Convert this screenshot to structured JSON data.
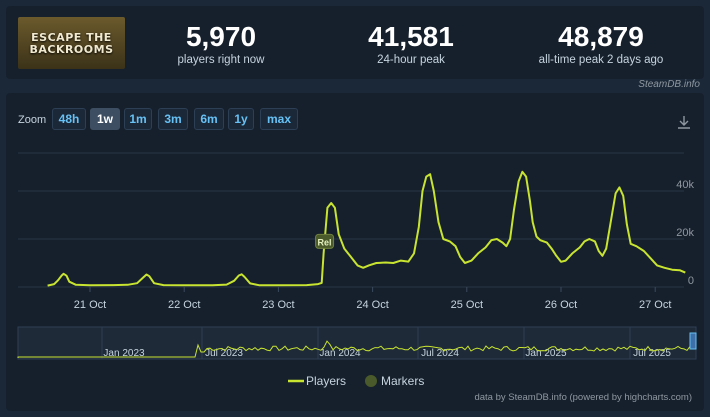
{
  "game": {
    "logo_text": "ESCAPE THE\nBACKROOMS"
  },
  "stats": [
    {
      "value": "5,970",
      "label": "players right now"
    },
    {
      "value": "41,581",
      "label": "24-hour peak"
    },
    {
      "value": "48,879",
      "label": "all-time peak 2 days ago"
    }
  ],
  "brand": "SteamDB.info",
  "zoom": {
    "label": "Zoom",
    "buttons": [
      "48h",
      "1w",
      "1m",
      "3m",
      "6m",
      "1y",
      "max"
    ],
    "active": "1w"
  },
  "legend": {
    "players": "Players",
    "markers": "Markers"
  },
  "credits": "data by SteamDB.info (powered by highcharts.com)",
  "colors": {
    "line": "#c8e431",
    "marker": "#4b5a2a",
    "accent": "#67c1f5"
  },
  "icons": {
    "download": "download-icon"
  },
  "chart_data": {
    "type": "line",
    "x_ticks": [
      "21 Oct",
      "22 Oct",
      "23 Oct",
      "24 Oct",
      "25 Oct",
      "26 Oct",
      "27 Oct"
    ],
    "y_ticks": [
      "0",
      "20k",
      "40k"
    ],
    "ylim": [
      0,
      50000
    ],
    "grid": true,
    "series": [
      {
        "name": "Players",
        "points": [
          [
            20.55,
            600
          ],
          [
            20.62,
            1200
          ],
          [
            20.66,
            2800
          ],
          [
            20.7,
            4800
          ],
          [
            20.72,
            5500
          ],
          [
            20.75,
            4700
          ],
          [
            20.78,
            2200
          ],
          [
            20.85,
            900
          ],
          [
            21.0,
            700
          ],
          [
            21.25,
            800
          ],
          [
            21.4,
            900
          ],
          [
            21.5,
            1600
          ],
          [
            21.56,
            3800
          ],
          [
            21.6,
            5200
          ],
          [
            21.63,
            4500
          ],
          [
            21.68,
            1600
          ],
          [
            21.78,
            800
          ],
          [
            22.0,
            700
          ],
          [
            22.3,
            700
          ],
          [
            22.45,
            1000
          ],
          [
            22.53,
            2600
          ],
          [
            22.58,
            4800
          ],
          [
            22.61,
            5300
          ],
          [
            22.64,
            4200
          ],
          [
            22.7,
            1500
          ],
          [
            22.8,
            700
          ],
          [
            23.0,
            700
          ],
          [
            23.3,
            800
          ],
          [
            23.42,
            1200
          ],
          [
            23.46,
            1700
          ],
          [
            23.48,
            14000
          ],
          [
            23.52,
            33000
          ],
          [
            23.56,
            35000
          ],
          [
            23.6,
            33000
          ],
          [
            23.64,
            22000
          ],
          [
            23.7,
            16000
          ],
          [
            23.76,
            13000
          ],
          [
            23.84,
            9000
          ],
          [
            23.9,
            8000
          ],
          [
            23.96,
            9000
          ],
          [
            24.04,
            10000
          ],
          [
            24.14,
            10200
          ],
          [
            24.22,
            10000
          ],
          [
            24.3,
            11000
          ],
          [
            24.38,
            10600
          ],
          [
            24.44,
            14000
          ],
          [
            24.49,
            25000
          ],
          [
            24.53,
            40000
          ],
          [
            24.57,
            46000
          ],
          [
            24.61,
            47000
          ],
          [
            24.65,
            40000
          ],
          [
            24.7,
            27000
          ],
          [
            24.75,
            20000
          ],
          [
            24.82,
            19000
          ],
          [
            24.88,
            17000
          ],
          [
            24.93,
            12500
          ],
          [
            24.98,
            10000
          ],
          [
            25.05,
            11000
          ],
          [
            25.12,
            14000
          ],
          [
            25.2,
            16500
          ],
          [
            25.26,
            19500
          ],
          [
            25.32,
            20000
          ],
          [
            25.38,
            18500
          ],
          [
            25.42,
            17000
          ],
          [
            25.46,
            20000
          ],
          [
            25.5,
            32000
          ],
          [
            25.55,
            44000
          ],
          [
            25.59,
            48000
          ],
          [
            25.63,
            46000
          ],
          [
            25.67,
            36000
          ],
          [
            25.7,
            27000
          ],
          [
            25.74,
            21000
          ],
          [
            25.78,
            19500
          ],
          [
            25.85,
            18500
          ],
          [
            25.9,
            16000
          ],
          [
            25.95,
            13000
          ],
          [
            26.0,
            10500
          ],
          [
            26.05,
            11000
          ],
          [
            26.12,
            14000
          ],
          [
            26.2,
            16500
          ],
          [
            26.25,
            19000
          ],
          [
            26.3,
            20000
          ],
          [
            26.36,
            19000
          ],
          [
            26.4,
            15000
          ],
          [
            26.44,
            13000
          ],
          [
            26.48,
            16000
          ],
          [
            26.54,
            30000
          ],
          [
            26.58,
            39000
          ],
          [
            26.62,
            41500
          ],
          [
            26.66,
            38000
          ],
          [
            26.7,
            26000
          ],
          [
            26.74,
            18000
          ],
          [
            26.8,
            17000
          ],
          [
            26.88,
            15000
          ],
          [
            26.95,
            12000
          ],
          [
            27.02,
            9000
          ],
          [
            27.1,
            8000
          ],
          [
            27.18,
            7200
          ],
          [
            27.26,
            7000
          ],
          [
            27.32,
            6000
          ]
        ]
      },
      {
        "name": "Markers",
        "points": [
          [
            23.49,
            19000
          ]
        ],
        "label": "Rel"
      }
    ],
    "navigator": {
      "x_ticks": [
        "Jan 2023",
        "Jul 2023",
        "Jan 2024",
        "Jul 2024",
        "Jan 2025",
        "Jul 2025"
      ]
    }
  }
}
